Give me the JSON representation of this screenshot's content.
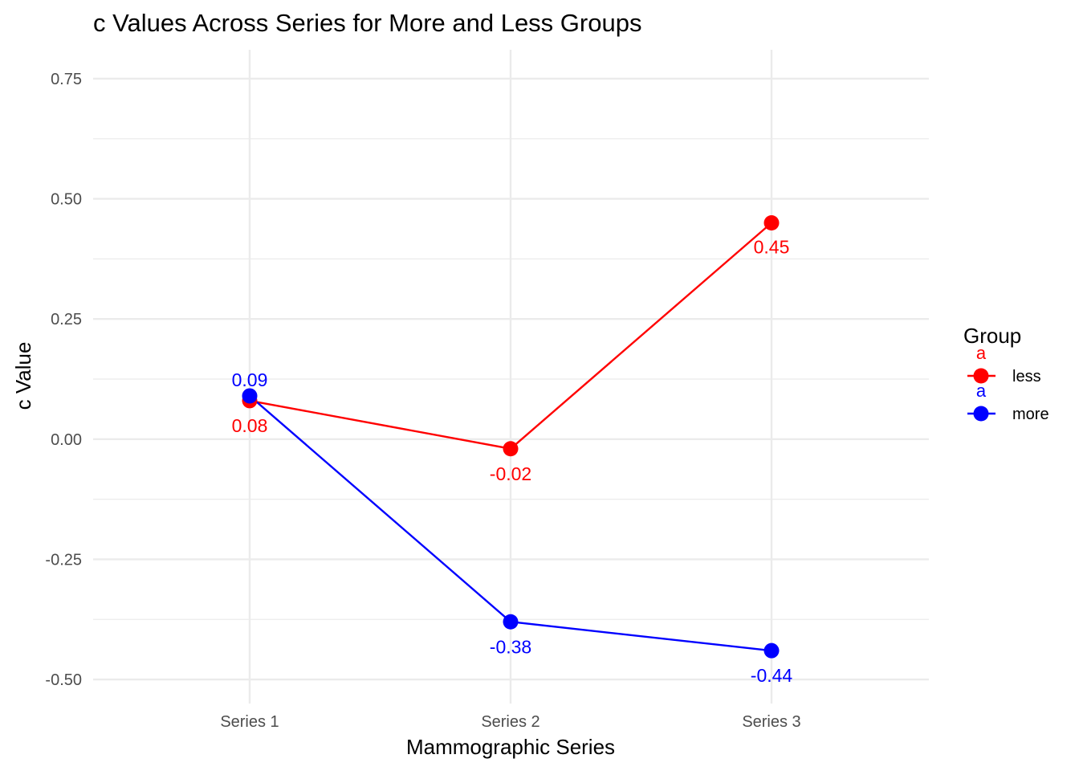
{
  "chart_data": {
    "type": "line",
    "title": "c Values Across Series for More and Less Groups",
    "xlabel": "Mammographic Series",
    "ylabel": "c Value",
    "categories": [
      "Series 1",
      "Series 2",
      "Series 3"
    ],
    "ylim": [
      -0.55,
      0.81
    ],
    "yticks": [
      -0.5,
      -0.25,
      0.0,
      0.25,
      0.5,
      0.75
    ],
    "ytick_labels": [
      "-0.50",
      "-0.25",
      "0.00",
      "0.25",
      "0.50",
      "0.75"
    ],
    "grid": true,
    "legend": {
      "title": "Group",
      "position": "right",
      "key_glyph_text": "a"
    },
    "series": [
      {
        "name": "less",
        "color": "#ff0000",
        "values": [
          0.08,
          -0.02,
          0.45
        ],
        "labels": [
          "0.08",
          "-0.02",
          "0.45"
        ]
      },
      {
        "name": "more",
        "color": "#0000ff",
        "values": [
          0.09,
          -0.38,
          -0.44
        ],
        "labels": [
          "0.09",
          "-0.38",
          "-0.44"
        ]
      }
    ]
  }
}
